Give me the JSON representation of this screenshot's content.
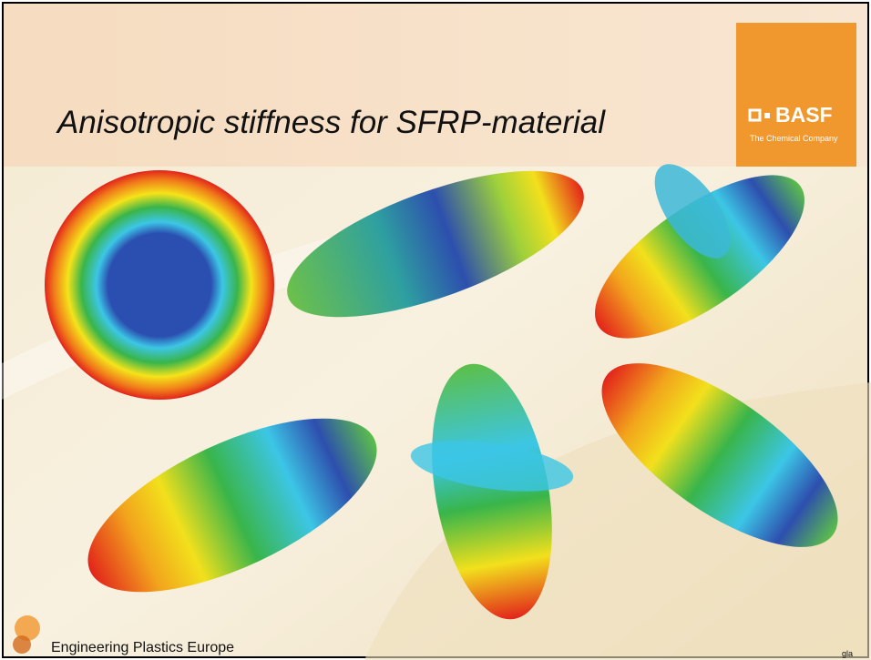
{
  "header": {
    "title": "Anisotropic stiffness for SFRP-material",
    "logo": {
      "name": "BASF",
      "tagline": "The Chemical Company"
    }
  },
  "footer": {
    "organization": "Engineering Plastics Europe",
    "author": "gla"
  }
}
